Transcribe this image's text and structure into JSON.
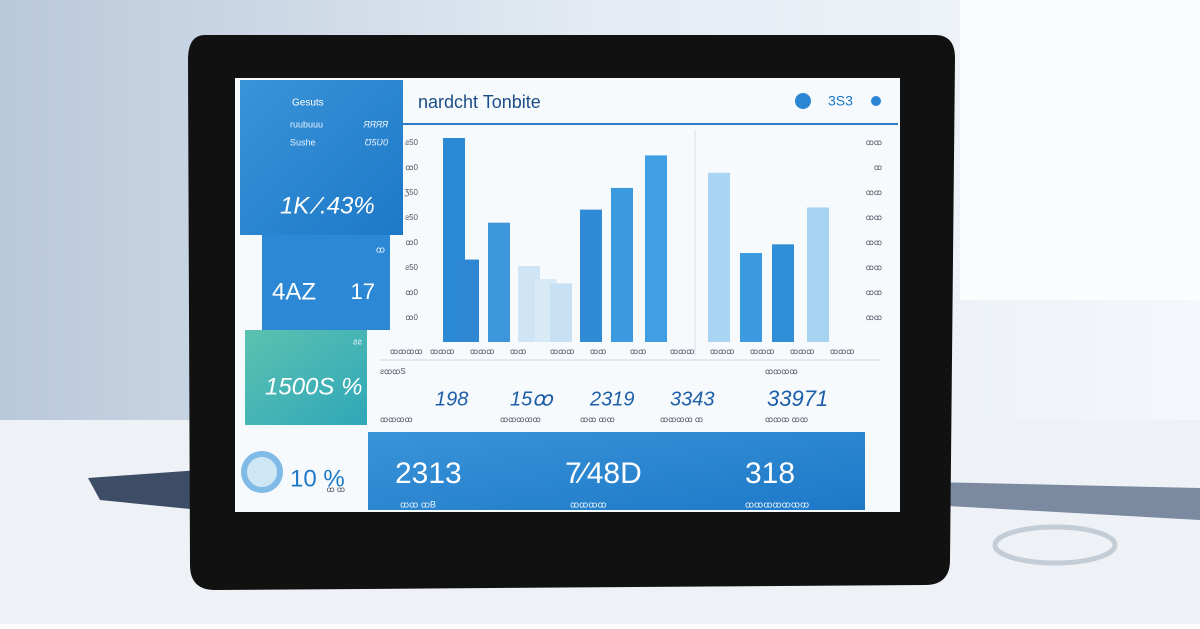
{
  "sidebar": {
    "title": "Gesuts",
    "rows": [
      [
        "ruubuuu",
        "ЯЯЯЯ"
      ],
      [
        "Sushe",
        "Ʊ5Ʋ0"
      ]
    ],
    "big_stat": "1K ⁄.43%",
    "panel2": [
      "4AZ",
      "17"
    ],
    "panel2_note": "ꝏ",
    "panel3": "1500S %",
    "panel3_note": "ƨƨ",
    "donut_stat": "10 %",
    "donut_note": "ꝏ ꝏ"
  },
  "header": {
    "title": "nardcht Tonbite",
    "badge": "3S3"
  },
  "chart": {
    "left_bars": [
      94,
      38,
      55,
      35,
      29,
      27,
      61,
      71,
      86
    ],
    "left_colors": [
      "#2b8ad6",
      "#2f86d2",
      "#3d95da",
      "#cfe4f5",
      "#d9eaf7",
      "#c8e0f4",
      "#2f8bd6",
      "#3b9ae0",
      "#3f9fe2"
    ],
    "right_bars": [
      78,
      41,
      45,
      62
    ],
    "right_colors": [
      "#a9d4f3",
      "#3c9be0",
      "#2f8ed8",
      "#a6d3f2"
    ],
    "y_labels": [
      "ƨ50",
      "ꝏ0",
      "Ʒ50",
      "ƨ50",
      "ꝏ0",
      "ƨ50",
      "ꝏ0",
      "ꝏ0"
    ],
    "y2_labels": [
      "ꝏꝏ",
      "ꝏ",
      "ꝏꝏ",
      "ꝏꝏ",
      "ꝏꝏ",
      "ꝏꝏ",
      "ꝏꝏ",
      "ꝏꝏ"
    ],
    "x_labels": [
      "ꝏꝏꝏꝏ",
      "ꝏꝏꝏ",
      "ꝏꝏꝏ",
      "ꝏꝏ",
      "ꝏꝏꝏ",
      "ꝏꝏ",
      "ꝏꝏ",
      "ꝏꝏꝏ",
      "ꝏꝏꝏ",
      "ꝏꝏꝏ",
      "ꝏꝏꝏ",
      "ꝏꝏꝏ"
    ]
  },
  "stats": [
    {
      "label": "ƨꝏꝏS",
      "value": "198",
      "note": "ꝏꝏꝏꝏ"
    },
    {
      "label": "",
      "value": "15ꝏ",
      "note": "ꝏꝏꝏꝏꝏ"
    },
    {
      "label": "",
      "value": "2319",
      "note": "ꝏꝏ ꝏꝏ"
    },
    {
      "label": "",
      "value": "3343",
      "note": "ꝏꝏꝏꝏ ꝏ"
    },
    {
      "label": "ꝏꝏꝏꝏ",
      "value": "33971",
      "note": "ꝏꝏꝏ ꝏꝏ"
    }
  ],
  "footer": {
    "values": [
      "2313",
      "7⁄48D",
      "318"
    ],
    "notes": [
      "ꝏꝏ ꝏB",
      "ꝏꝏꝏꝏ",
      "ꝏꝏꝏꝏꝏꝏꝏ"
    ]
  }
}
